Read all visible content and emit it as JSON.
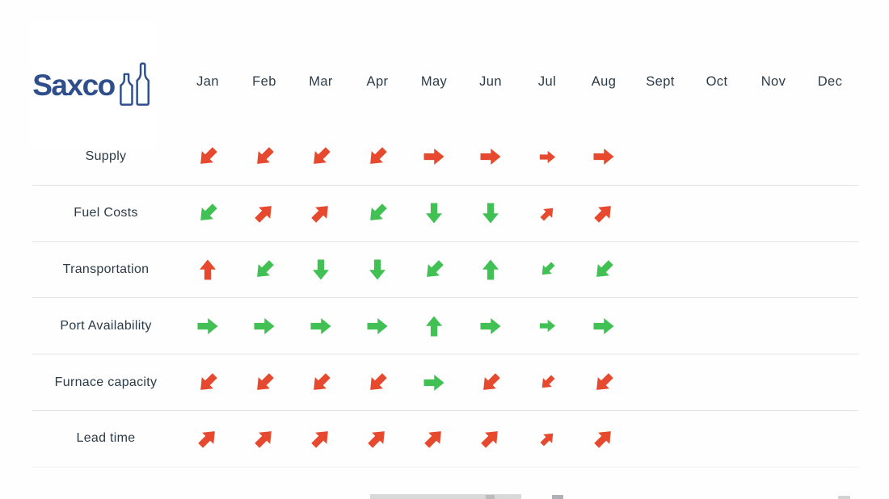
{
  "brand": {
    "name": "Saxco"
  },
  "colors": {
    "red": "#E6492D",
    "green": "#41C053",
    "navy": "#2E4F8C",
    "text": "#2B3B47",
    "divider": "#E4E4E4"
  },
  "chart_data": {
    "type": "table",
    "title": "",
    "columns": [
      "Jan",
      "Feb",
      "Mar",
      "Apr",
      "May",
      "Jun",
      "Jul",
      "Aug",
      "Sept",
      "Oct",
      "Nov",
      "Dec"
    ],
    "rows": [
      {
        "label": "Supply",
        "cells": [
          {
            "dir": "down-left",
            "color": "red"
          },
          {
            "dir": "down-left",
            "color": "red"
          },
          {
            "dir": "down-left",
            "color": "red"
          },
          {
            "dir": "down-left",
            "color": "red"
          },
          {
            "dir": "right",
            "color": "red"
          },
          {
            "dir": "right",
            "color": "red"
          },
          {
            "dir": "right",
            "color": "red",
            "size": "small"
          },
          {
            "dir": "right",
            "color": "red"
          },
          null,
          null,
          null,
          null
        ]
      },
      {
        "label": "Fuel Costs",
        "cells": [
          {
            "dir": "down-left",
            "color": "green"
          },
          {
            "dir": "up-right",
            "color": "red"
          },
          {
            "dir": "up-right",
            "color": "red"
          },
          {
            "dir": "down-left",
            "color": "green"
          },
          {
            "dir": "down",
            "color": "green"
          },
          {
            "dir": "down",
            "color": "green"
          },
          {
            "dir": "up-right",
            "color": "red",
            "size": "small"
          },
          {
            "dir": "up-right",
            "color": "red"
          },
          null,
          null,
          null,
          null
        ]
      },
      {
        "label": "Transportation",
        "cells": [
          {
            "dir": "up",
            "color": "red"
          },
          {
            "dir": "down-left",
            "color": "green"
          },
          {
            "dir": "down",
            "color": "green"
          },
          {
            "dir": "down",
            "color": "green"
          },
          {
            "dir": "down-left",
            "color": "green"
          },
          {
            "dir": "up",
            "color": "green"
          },
          {
            "dir": "down-left",
            "color": "green",
            "size": "small"
          },
          {
            "dir": "down-left",
            "color": "green"
          },
          null,
          null,
          null,
          null
        ]
      },
      {
        "label": "Port Availability",
        "cells": [
          {
            "dir": "right",
            "color": "green"
          },
          {
            "dir": "right",
            "color": "green"
          },
          {
            "dir": "right",
            "color": "green"
          },
          {
            "dir": "right",
            "color": "green"
          },
          {
            "dir": "up",
            "color": "green"
          },
          {
            "dir": "right",
            "color": "green"
          },
          {
            "dir": "right",
            "color": "green",
            "size": "small"
          },
          {
            "dir": "right",
            "color": "green"
          },
          null,
          null,
          null,
          null
        ]
      },
      {
        "label": "Furnace capacity",
        "cells": [
          {
            "dir": "down-left",
            "color": "red"
          },
          {
            "dir": "down-left",
            "color": "red"
          },
          {
            "dir": "down-left",
            "color": "red"
          },
          {
            "dir": "down-left",
            "color": "red"
          },
          {
            "dir": "right",
            "color": "green"
          },
          {
            "dir": "down-left",
            "color": "red"
          },
          {
            "dir": "down-left",
            "color": "red",
            "size": "small"
          },
          {
            "dir": "down-left",
            "color": "red"
          },
          null,
          null,
          null,
          null
        ]
      },
      {
        "label": "Lead time",
        "cells": [
          {
            "dir": "up-right",
            "color": "red"
          },
          {
            "dir": "up-right",
            "color": "red"
          },
          {
            "dir": "up-right",
            "color": "red"
          },
          {
            "dir": "up-right",
            "color": "red"
          },
          {
            "dir": "up-right",
            "color": "red"
          },
          {
            "dir": "up-right",
            "color": "red"
          },
          {
            "dir": "up-right",
            "color": "red",
            "size": "small"
          },
          {
            "dir": "up-right",
            "color": "red"
          },
          null,
          null,
          null,
          null
        ]
      }
    ]
  }
}
